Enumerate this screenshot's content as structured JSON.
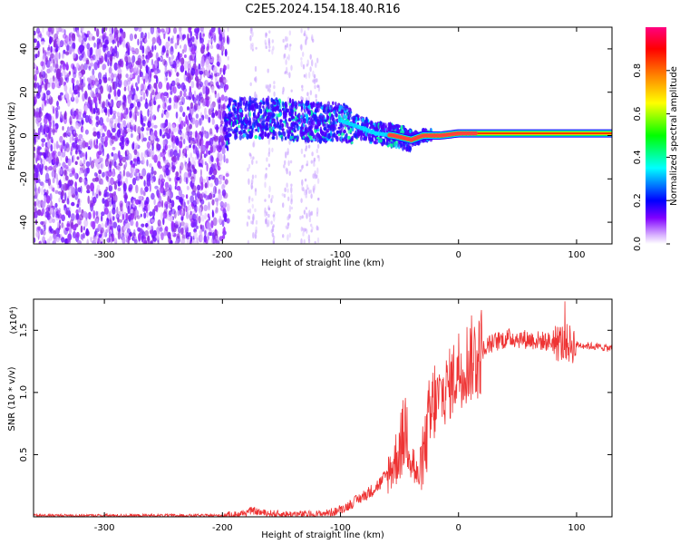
{
  "title": "C2E5.2024.154.18.40.R16",
  "chart_data": [
    {
      "type": "heatmap",
      "name": "spectrogram",
      "xlabel": "Height of straight line (km)",
      "ylabel": "Frequency (Hz)",
      "xlim": [
        -360,
        130
      ],
      "ylim": [
        -50,
        50
      ],
      "x_ticks": [
        -300,
        -200,
        -100,
        0,
        100
      ],
      "y_ticks": [
        -40,
        -20,
        0,
        20,
        40
      ],
      "colorbar": {
        "label": "Normalized spectral amplitude",
        "range": [
          0,
          1
        ],
        "ticks": [
          0.0,
          0.2,
          0.4,
          0.6,
          0.8
        ],
        "colors": [
          "#ffffff",
          "#d9b3ff",
          "#8000ff",
          "#0000ff",
          "#00ffff",
          "#00ff00",
          "#ffff00",
          "#ff8000",
          "#ff0000",
          "#ff0080"
        ]
      },
      "ridge": [
        {
          "x": -195,
          "y": 8
        },
        {
          "x": -180,
          "y": 8
        },
        {
          "x": -160,
          "y": 8
        },
        {
          "x": -140,
          "y": 7
        },
        {
          "x": -120,
          "y": 6
        },
        {
          "x": -100,
          "y": 7
        },
        {
          "x": -85,
          "y": 4
        },
        {
          "x": -70,
          "y": 1
        },
        {
          "x": -55,
          "y": 0
        },
        {
          "x": -40,
          "y": -2
        },
        {
          "x": -30,
          "y": 0
        },
        {
          "x": -15,
          "y": 0
        },
        {
          "x": 0,
          "y": 1
        },
        {
          "x": 20,
          "y": 1
        },
        {
          "x": 60,
          "y": 1
        },
        {
          "x": 90,
          "y": 1
        },
        {
          "x": 130,
          "y": 1
        }
      ]
    },
    {
      "type": "line",
      "name": "snr",
      "xlabel": "Height of straight line (km)",
      "ylabel": "SNR (10 * v/v)",
      "y_multiplier": "(x10⁴)",
      "xlim": [
        -360,
        130
      ],
      "ylim": [
        0,
        1.75
      ],
      "x_ticks": [
        -300,
        -200,
        -100,
        0,
        100
      ],
      "y_ticks": [
        0.5,
        1.0,
        1.5
      ],
      "series": [
        {
          "color": "#ee3333",
          "points": [
            [
              -360,
              0.01
            ],
            [
              -300,
              0.01
            ],
            [
              -250,
              0.01
            ],
            [
              -200,
              0.01
            ],
            [
              -185,
              0.02
            ],
            [
              -175,
              0.05
            ],
            [
              -165,
              0.03
            ],
            [
              -150,
              0.02
            ],
            [
              -120,
              0.02
            ],
            [
              -105,
              0.04
            ],
            [
              -95,
              0.08
            ],
            [
              -85,
              0.14
            ],
            [
              -75,
              0.2
            ],
            [
              -65,
              0.28
            ],
            [
              -55,
              0.42
            ],
            [
              -48,
              0.6
            ],
            [
              -44,
              0.75
            ],
            [
              -40,
              0.5
            ],
            [
              -35,
              0.3
            ],
            [
              -30,
              0.45
            ],
            [
              -25,
              0.75
            ],
            [
              -18,
              0.95
            ],
            [
              -12,
              1.0
            ],
            [
              -5,
              1.1
            ],
            [
              0,
              1.2
            ],
            [
              8,
              1.25
            ],
            [
              15,
              1.3
            ],
            [
              25,
              1.38
            ],
            [
              35,
              1.42
            ],
            [
              45,
              1.44
            ],
            [
              55,
              1.43
            ],
            [
              65,
              1.42
            ],
            [
              75,
              1.41
            ],
            [
              85,
              1.4
            ],
            [
              95,
              1.39
            ],
            [
              105,
              1.38
            ],
            [
              115,
              1.37
            ],
            [
              125,
              1.36
            ],
            [
              130,
              1.35
            ]
          ]
        }
      ]
    }
  ]
}
